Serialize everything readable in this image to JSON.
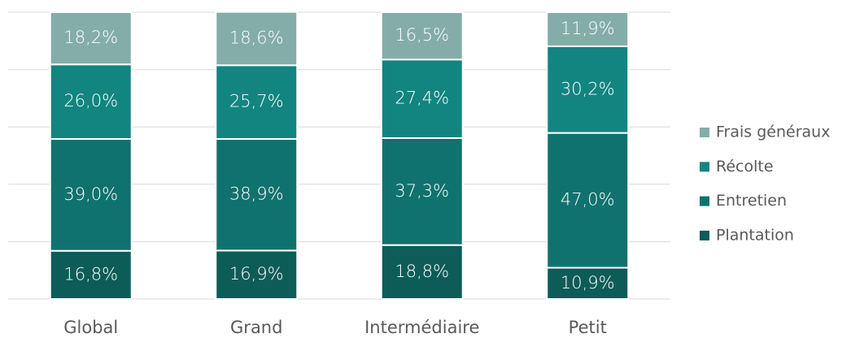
{
  "chart_data": {
    "type": "stacked_bar",
    "categories": [
      "Global",
      "Grand",
      "Intermédiaire",
      "Petit"
    ],
    "series": [
      {
        "name": "Plantation",
        "color": "#0d5c58",
        "values": [
          16.8,
          16.9,
          18.8,
          10.9
        ],
        "value_labels": [
          "16,8%",
          "16,9%",
          "18,8%",
          "10,9%"
        ]
      },
      {
        "name": "Entretien",
        "color": "#10726e",
        "values": [
          39.0,
          38.9,
          37.3,
          47.0
        ],
        "value_labels": [
          "39,0%",
          "38,9%",
          "37,3%",
          "47,0%"
        ]
      },
      {
        "name": "Récolte",
        "color": "#128581",
        "values": [
          26.0,
          25.7,
          27.4,
          30.2
        ],
        "value_labels": [
          "26,0%",
          "25,7%",
          "27,4%",
          "30,2%"
        ]
      },
      {
        "name": "Frais généraux",
        "color": "#84ada9",
        "values": [
          18.2,
          18.6,
          16.5,
          11.9
        ],
        "value_labels": [
          "18,2%",
          "18,6%",
          "16,5%",
          "11,9%"
        ]
      }
    ],
    "ylim": [
      0,
      100
    ],
    "yticks": [
      0,
      20,
      40,
      60,
      80,
      100
    ],
    "grid": true,
    "legend": "right"
  }
}
